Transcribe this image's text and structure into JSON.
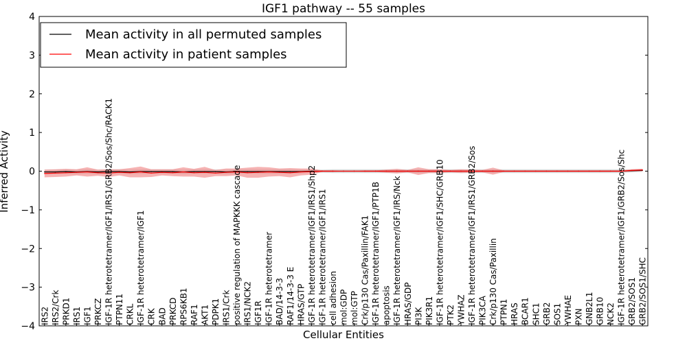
{
  "chart_data": {
    "type": "line",
    "title": "IGF1 pathway -- 55 samples",
    "xlabel": "Cellular Entities",
    "ylabel": "Inferred Activity",
    "ylim": [
      -4,
      4
    ],
    "yticks": [
      -4,
      -3,
      -2,
      -1,
      0,
      1,
      2,
      3,
      4
    ],
    "ytick_labels": [
      "−4",
      "−3",
      "−2",
      "−1",
      "0",
      "1",
      "2",
      "3",
      "4"
    ],
    "legend": {
      "placement": "top-left"
    },
    "colors": {
      "permuted": "#000000",
      "patient": "#ff0000",
      "patient_band": "#f08080",
      "permuted_band": "#bfbfbf"
    },
    "categories": [
      "IRS2",
      "IRS2/Crk",
      "PRKD1",
      "IRS1",
      "IGF1",
      "PRKCZ",
      "IGF-1R heterotetramer/IGF1/IRS1/GRB2/Sos/Shc/RACK1",
      "PTPN11",
      "CRKL",
      "IGF-1R heterotetramer/IGF1",
      "CRK",
      "BAD",
      "PRKCD",
      "RPS6KB1",
      "RAF1",
      "AKT1",
      "PDPK1",
      "IRS1/Crk",
      "positive regulation of MAPKKK cascade",
      "IRS1/NCK2",
      "IGF1R",
      "IGF-1R heterotetramer",
      "BAD/14-3-3",
      "RAF1/14-3-3 E",
      "HRAS/GTP",
      "IGF-1R heterotetramer/IGF1/IRS1/Shp2",
      "IGF-1R heterotetramer/IGF1/IRS1",
      "cell adhesion",
      "mol:GDP",
      "mol:GTP",
      "Crk/p130 Cas/Paxillin/FAK1",
      "IGF-1R heterotetramer/IGF1/PTP1B",
      "apoptosis",
      "IGF-1R heterotetramer/IGF1/IRS/Nck",
      "HRAS/GDP",
      "PI3K",
      "PIK3R1",
      "IGF-1R heterotetramer/IGF1/SHC/GRB10",
      "PTK2",
      "YWHAZ",
      "IGF-1R heterotetramer/IGF1/IRS1/GRB2/Sos",
      "PIK3CA",
      "Crk/p130 Cas/Paxillin",
      "PTPN1",
      "HRAS",
      "BCAR1",
      "SHC1",
      "GRB2",
      "SOS1",
      "YWHAE",
      "PXN",
      "GNB2L1",
      "GRB10",
      "NCK2",
      "IGF-1R heterotetramer/IGF1/GRB2/Sos/Shc",
      "GRB2/SOS1",
      "GRB2/SOS1/SHC"
    ],
    "series": [
      {
        "name": "Mean activity in all permuted samples",
        "values": [
          -0.02,
          -0.02,
          -0.01,
          -0.02,
          -0.01,
          -0.02,
          -0.01,
          -0.01,
          -0.02,
          -0.01,
          -0.01,
          -0.01,
          -0.01,
          -0.02,
          -0.01,
          -0.01,
          -0.01,
          -0.02,
          -0.01,
          -0.01,
          -0.01,
          -0.01,
          -0.01,
          -0.01,
          -0.01,
          0,
          0,
          0,
          0,
          0,
          0,
          0,
          0,
          0,
          0,
          0,
          0,
          0,
          0,
          0,
          0,
          0,
          0,
          0,
          0,
          0,
          0,
          0,
          0,
          0,
          0,
          0,
          0,
          0,
          0,
          0.01,
          0.02
        ],
        "band": [
          0.06,
          0.06,
          0.06,
          0.06,
          0.06,
          0.06,
          0.06,
          0.06,
          0.06,
          0.06,
          0.06,
          0.06,
          0.06,
          0.06,
          0.06,
          0.06,
          0.06,
          0.06,
          0.06,
          0.06,
          0.06,
          0.06,
          0.06,
          0.06,
          0.05,
          0.04,
          0.04,
          0.05,
          0.05,
          0.05,
          0.05,
          0.05,
          0.05,
          0.05,
          0.05,
          0.05,
          0.05,
          0.05,
          0.05,
          0.05,
          0.05,
          0.05,
          0.05,
          0.05,
          0.05,
          0.05,
          0.05,
          0.05,
          0.05,
          0.05,
          0.05,
          0.05,
          0.05,
          0.05,
          0.05,
          0.04,
          0.04
        ]
      },
      {
        "name": "Mean activity in patient samples",
        "values": [
          -0.06,
          -0.05,
          -0.04,
          -0.03,
          -0.02,
          -0.04,
          -0.05,
          -0.03,
          -0.04,
          -0.02,
          -0.05,
          -0.03,
          -0.04,
          -0.02,
          -0.04,
          -0.03,
          -0.05,
          -0.03,
          -0.02,
          -0.04,
          -0.03,
          -0.02,
          -0.03,
          -0.04,
          -0.02,
          -0.01,
          0,
          0,
          0,
          0,
          0,
          0,
          0,
          0,
          0,
          0,
          0,
          0,
          0,
          0,
          0,
          0,
          0,
          0,
          0,
          0,
          0,
          0,
          0,
          0,
          0,
          0,
          0,
          0,
          0,
          0.02,
          0.03
        ],
        "band": [
          0.1,
          0.1,
          0.1,
          0.08,
          0.12,
          0.08,
          0.1,
          0.08,
          0.12,
          0.14,
          0.1,
          0.08,
          0.09,
          0.12,
          0.1,
          0.14,
          0.08,
          0.1,
          0.09,
          0.13,
          0.14,
          0.12,
          0.1,
          0.12,
          0.09,
          0.08,
          0.02,
          0.02,
          0,
          0,
          0.02,
          0.02,
          0.04,
          0.06,
          0.03,
          0.1,
          0.05,
          0.05,
          0.03,
          0.05,
          0.04,
          0.03,
          0.09,
          0.02,
          0.02,
          0.02,
          0.02,
          0.02,
          0.02,
          0.02,
          0.02,
          0.02,
          0.02,
          0.02,
          0.02,
          0.03,
          0.03
        ]
      }
    ]
  }
}
